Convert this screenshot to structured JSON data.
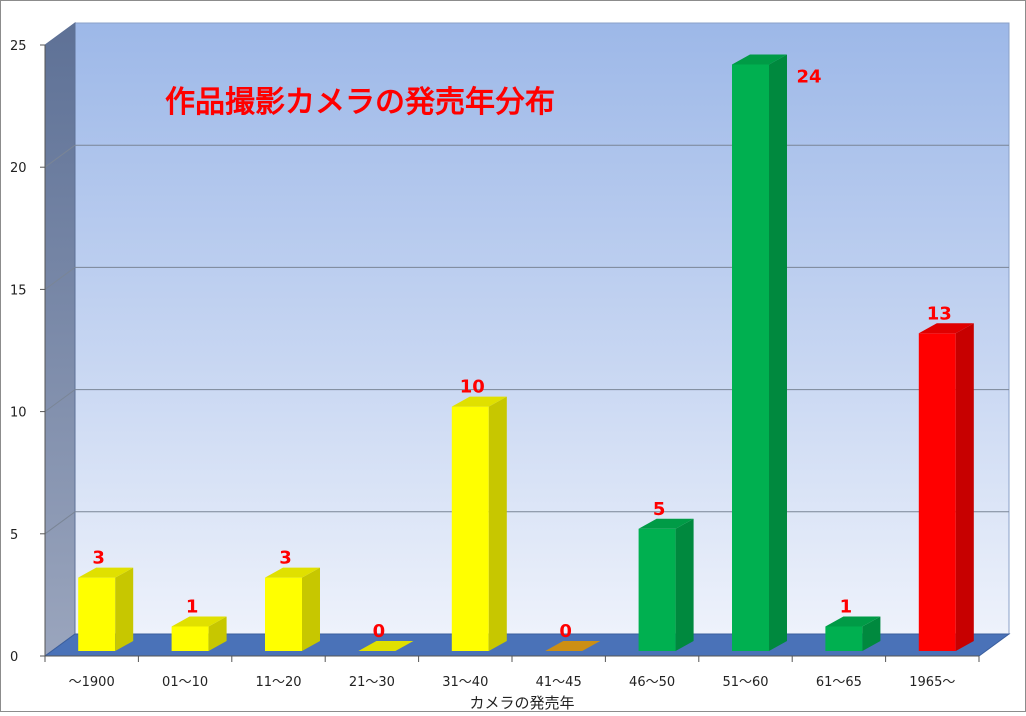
{
  "chart_data": {
    "type": "bar",
    "title": "作品撮影カメラの発売年分布",
    "xlabel": "カメラの発売年",
    "ylabel": "",
    "categories": [
      "～1900",
      "01～10",
      "11～20",
      "21～30",
      "31～40",
      "41～45",
      "46～50",
      "51～60",
      "61～65",
      "1965～"
    ],
    "values": [
      3,
      1,
      3,
      0,
      10,
      0,
      5,
      24,
      1,
      13
    ],
    "data_labels": [
      "3",
      "1",
      "3",
      "0",
      "10",
      "0",
      "5",
      "24",
      "1",
      "13"
    ],
    "ylim": [
      0,
      25
    ],
    "y_ticks": [
      0,
      5,
      10,
      15,
      20,
      25
    ],
    "y_tick_labels": [
      "0",
      "5",
      "10",
      "15",
      "20",
      "25"
    ],
    "grid": true,
    "legend": "none",
    "bar_colors": [
      "#ffff00",
      "#ffff00",
      "#ffff00",
      "#ffff00",
      "#ffff00",
      "#e8a317",
      "#00b050",
      "#00b050",
      "#00b050",
      "#ff0000"
    ],
    "title_color": "#ff0000",
    "data_label_color": "#ff0000"
  }
}
